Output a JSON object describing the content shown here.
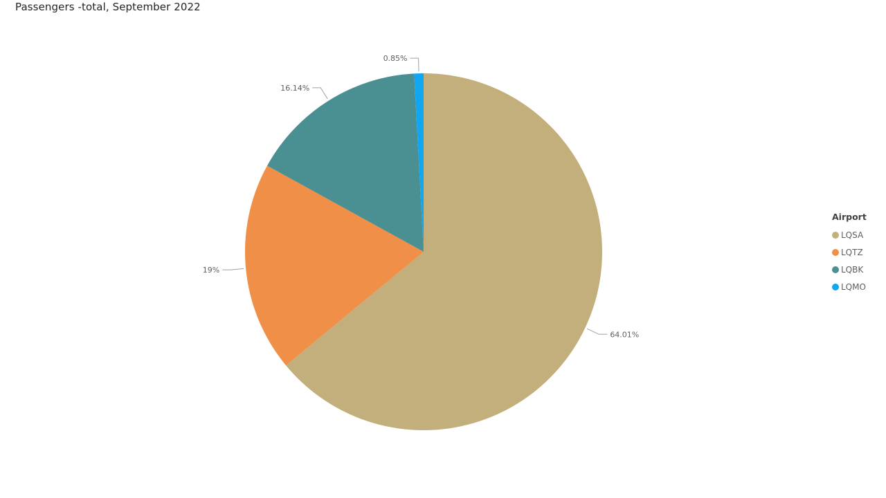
{
  "chart_data": {
    "type": "pie",
    "title": "Passengers -total, September 2022",
    "legend_title": "Airport",
    "legend_position": "right",
    "categories": [
      "LQSA",
      "LQTZ",
      "LQBK",
      "LQMO"
    ],
    "values": [
      64.01,
      19,
      16.14,
      0.85
    ],
    "labels": [
      "64.01%",
      "19%",
      "16.14%",
      "0.85%"
    ],
    "colors": [
      "#C3AF7B",
      "#F08F47",
      "#4A8F92",
      "#11A6F2"
    ]
  }
}
